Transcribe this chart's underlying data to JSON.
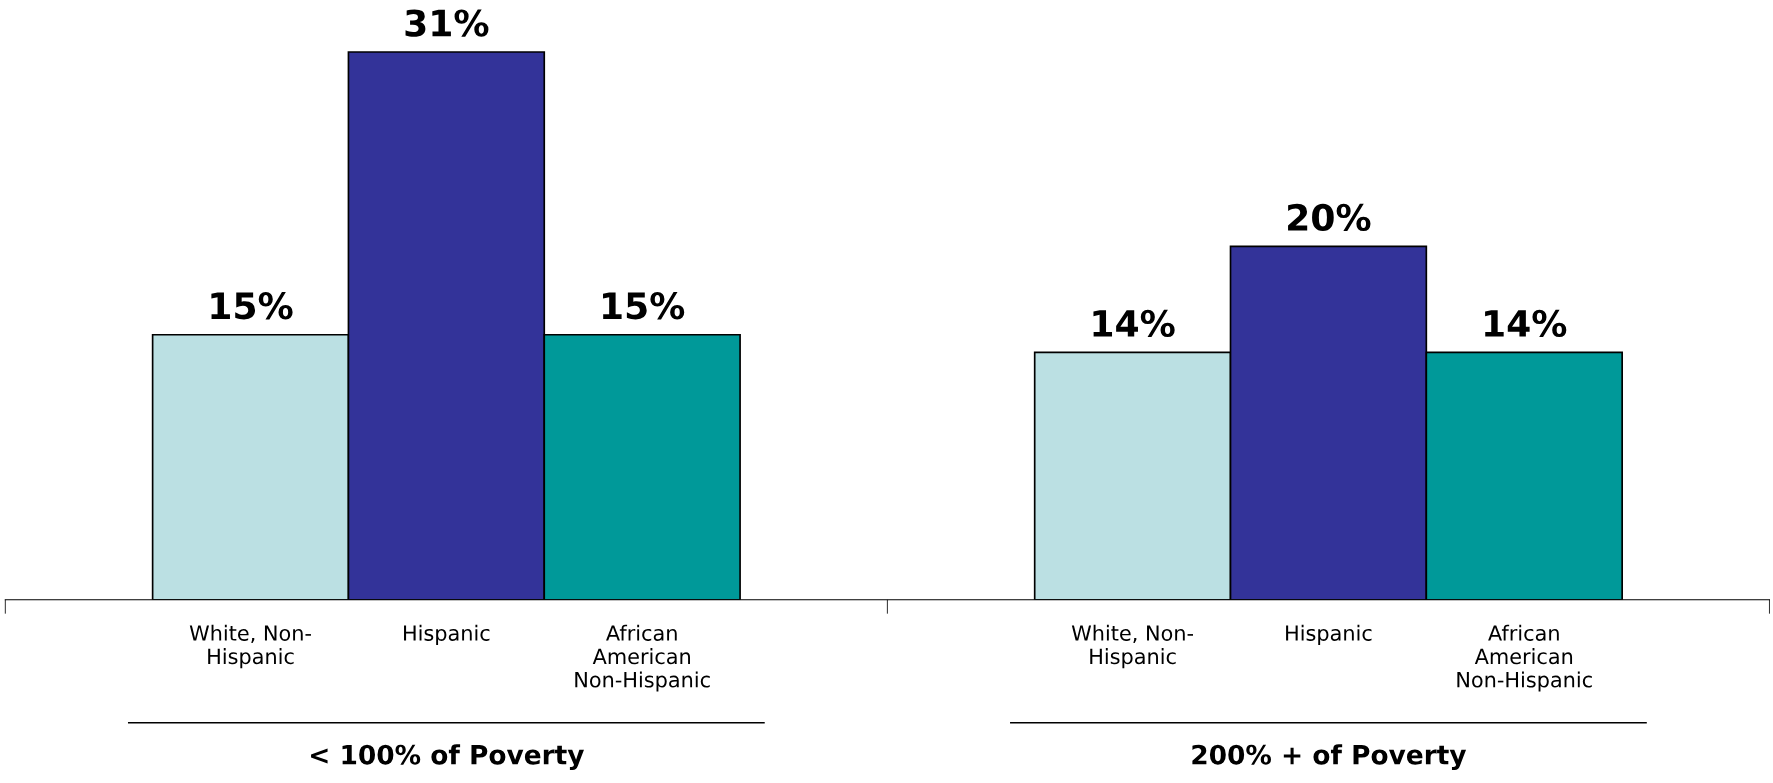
{
  "chart_data": {
    "type": "bar",
    "categories": [
      "< 100% of Poverty",
      "200% + of Poverty"
    ],
    "series": [
      {
        "name": "White, Non-\nHispanic",
        "color": "#bbe0e3",
        "values": [
          15,
          14
        ],
        "value_labels": [
          "15%",
          "14%"
        ]
      },
      {
        "name": "Hispanic",
        "color": "#333399",
        "values": [
          31,
          20
        ],
        "value_labels": [
          "31%",
          "20%"
        ]
      },
      {
        "name": "African\nAmerican\nNon-Hispanic",
        "color": "#009999",
        "values": [
          15,
          14
        ],
        "value_labels": [
          "15%",
          "14%"
        ]
      }
    ],
    "grid": false,
    "legend": false
  }
}
